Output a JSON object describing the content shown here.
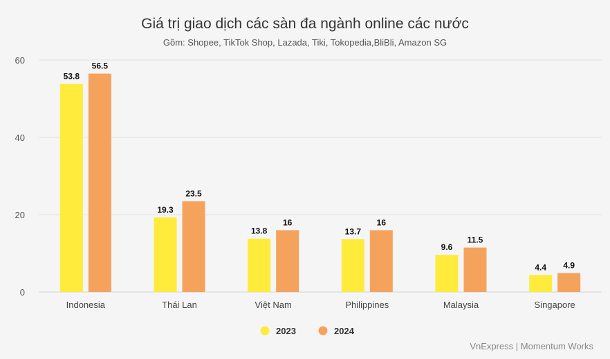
{
  "chart_data": {
    "type": "bar",
    "title": "Giá trị giao dịch các sàn đa ngành online các nước",
    "subtitle": "Gồm: Shopee, TikTok Shop, Lazada, Tiki, Tokopedia,BliBli, Amazon SG",
    "categories": [
      "Indonesia",
      "Thái Lan",
      "Việt Nam",
      "Philippines",
      "Malaysia",
      "Singapore"
    ],
    "series": [
      {
        "name": "2023",
        "color": "#ffeb3b",
        "values": [
          53.8,
          19.3,
          13.8,
          13.7,
          9.6,
          4.4
        ],
        "labels": [
          "53.8",
          "19.3",
          "13.8",
          "13.7",
          "9.6",
          "4.4"
        ]
      },
      {
        "name": "2024",
        "color": "#f5a35c",
        "values": [
          56.5,
          23.5,
          16,
          16,
          11.5,
          4.9
        ],
        "labels": [
          "56.5",
          "23.5",
          "16",
          "16",
          "11.5",
          "4.9"
        ]
      }
    ],
    "yticks": [
      "0",
      "20",
      "40",
      "60"
    ],
    "ylim": [
      0,
      60
    ],
    "grid": true,
    "legend": "bottom-center",
    "credit": "VnExpress | Momentum Works"
  }
}
